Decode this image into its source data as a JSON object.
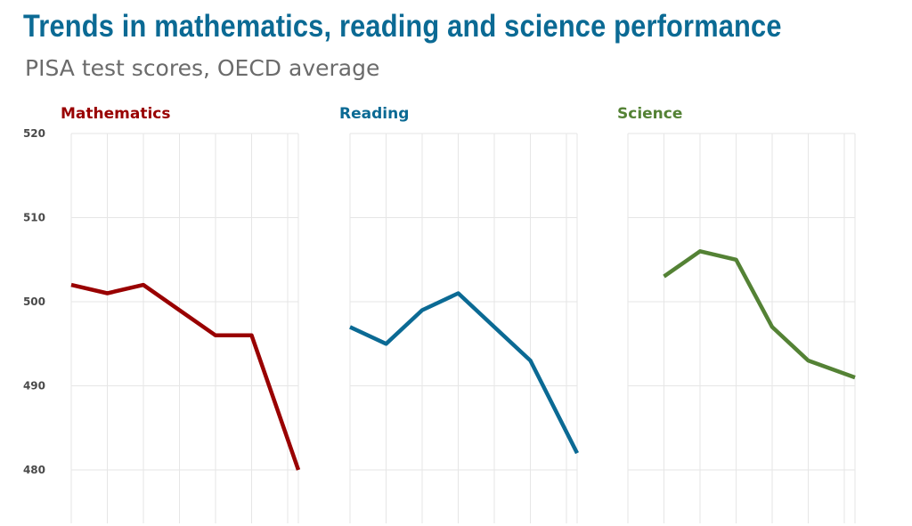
{
  "header": {
    "title": "Trends in mathematics, reading and science performance",
    "subtitle": "PISA test scores, OECD average"
  },
  "chart_data": {
    "type": "line",
    "ylim": [
      480,
      520
    ],
    "yticks": [
      480,
      490,
      500,
      510,
      520
    ],
    "grid": true,
    "panels": [
      {
        "name": "Mathematics",
        "color": "#990000",
        "x": [
          0,
          1,
          2,
          3,
          4,
          5,
          6
        ],
        "values": [
          502,
          501,
          502,
          499,
          496,
          496,
          480
        ]
      },
      {
        "name": "Reading",
        "color": "#0b6a94",
        "x": [
          0,
          1,
          2,
          3,
          4,
          5,
          6
        ],
        "values": [
          497,
          495,
          499,
          501,
          497,
          493,
          482
        ]
      },
      {
        "name": "Science",
        "color": "#548235",
        "x": [
          1,
          2,
          3,
          4,
          5,
          6
        ],
        "values": [
          503,
          506,
          505,
          497,
          493,
          491
        ]
      }
    ]
  }
}
